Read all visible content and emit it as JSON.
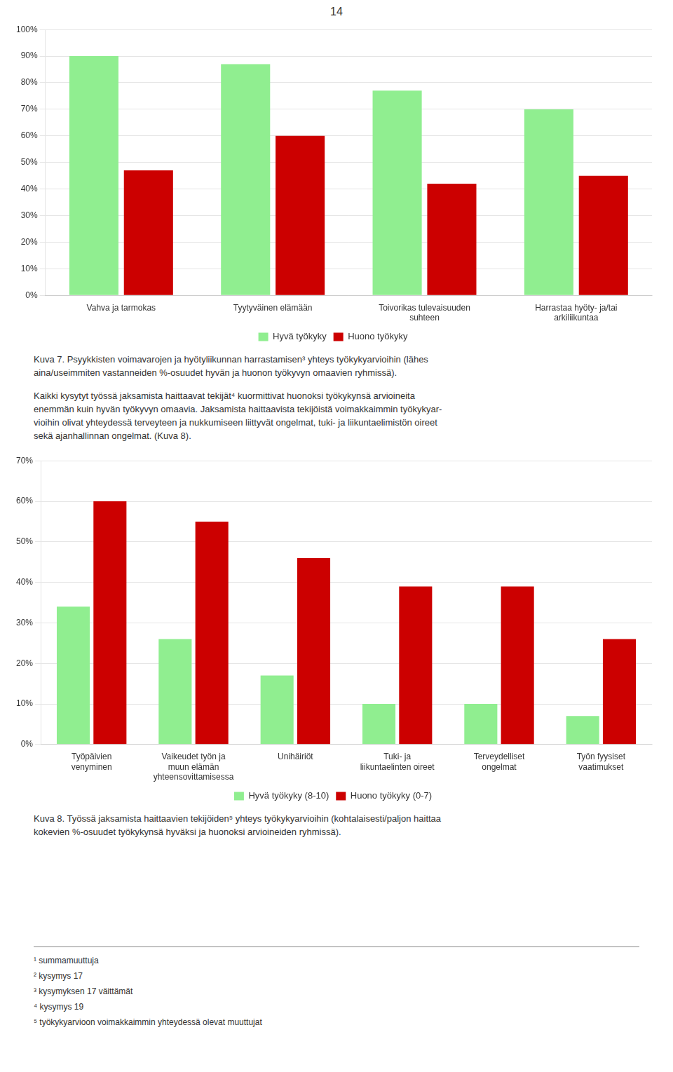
{
  "page_number": "14",
  "chart_data": [
    {
      "type": "bar",
      "categories": [
        "Vahva ja tarmokas",
        "Tyytyväinen elämään",
        "Toivorikas tulevaisuuden\nsuhteen",
        "Harrastaa hyöty- ja/tai\narkiliikuntaa"
      ],
      "series": [
        {
          "name": "Hyvä työkyky",
          "color": "#90EE90",
          "values": [
            90,
            87,
            77,
            70
          ]
        },
        {
          "name": "Huono työkyky",
          "color": "#CC0000",
          "values": [
            47,
            60,
            42,
            45
          ]
        }
      ],
      "ylim": [
        0,
        100
      ],
      "yticks": [
        {
          "value": 0,
          "label": "0%"
        },
        {
          "value": 10,
          "label": "10%"
        },
        {
          "value": 20,
          "label": "20%"
        },
        {
          "value": 30,
          "label": "30%"
        },
        {
          "value": 40,
          "label": "40%"
        },
        {
          "value": 50,
          "label": "50%"
        },
        {
          "value": 60,
          "label": "60%"
        },
        {
          "value": 70,
          "label": "70%"
        },
        {
          "value": 80,
          "label": "80%"
        },
        {
          "value": 90,
          "label": "90%"
        },
        {
          "value": 100,
          "label": "100%"
        }
      ],
      "grid": true,
      "legend": "bottom",
      "caption": [
        "Kuva 7. Psyykkisten voimavarojen ja hyötyliikunnan harrastamisen³ yhteys työkykyarvioihin (lähes",
        "aina/useimmiten vastanneiden %-osuudet hyvän ja huonon työkyvyn omaavien ryhmissä)."
      ]
    },
    {
      "type": "bar",
      "categories": [
        "Työpäivien\nvenyminen",
        "Vaikeudet työn ja\nmuun elämän\nyhteensovittamisessa",
        "Unihäiriöt",
        "Tuki- ja\nliikuntaelinten oireet",
        "Terveydelliset\nongelmat",
        "Työn fyysiset\nvaatimukset"
      ],
      "series": [
        {
          "name": "Hyvä työkyky (8-10)",
          "color": "#90EE90",
          "values": [
            34,
            26,
            17,
            10,
            10,
            7
          ]
        },
        {
          "name": "Huono työkyky (0-7)",
          "color": "#CC0000",
          "values": [
            60,
            55,
            46,
            39,
            39,
            26
          ]
        }
      ],
      "ylim": [
        0,
        70
      ],
      "yticks": [
        {
          "value": 0,
          "label": "0%"
        },
        {
          "value": 10,
          "label": "10%"
        },
        {
          "value": 20,
          "label": "20%"
        },
        {
          "value": 30,
          "label": "30%"
        },
        {
          "value": 40,
          "label": "40%"
        },
        {
          "value": 50,
          "label": "50%"
        },
        {
          "value": 60,
          "label": "60%"
        },
        {
          "value": 70,
          "label": "70%"
        }
      ],
      "grid": true,
      "legend": "bottom",
      "caption": [
        "Kuva 8. Työssä jaksamista haittaavien tekijöiden⁵ yhteys työkykyarvioihin (kohtalaisesti/paljon haittaa",
        "kokevien %-osuudet työkykynsä hyväksi ja huonoksi arvioineiden ryhmissä)."
      ]
    }
  ],
  "body_text": [
    "Kaikki kysytyt työssä jaksamista haittaavat tekijät⁴ kuormittivat huonoksi työkykynsä arvioineita",
    "enemmän kuin hyvän työkyvyn omaavia. Jaksamista haittaavista tekijöistä voimakkaimmin työkykyar-",
    "vioihin olivat yhteydessä terveyteen ja nukkumiseen liittyvät ongelmat, tuki- ja liikuntaelimistön oireet",
    "sekä ajanhallinnan ongelmat. (Kuva 8)."
  ],
  "footnotes": [
    "¹ summamuuttuja",
    "² kysymys 17",
    "³ kysymyksen 17 väittämät",
    "⁴ kysymys 19",
    "⁵ työkykyarvioon voimakkaimmin yhteydessä olevat muuttujat"
  ]
}
